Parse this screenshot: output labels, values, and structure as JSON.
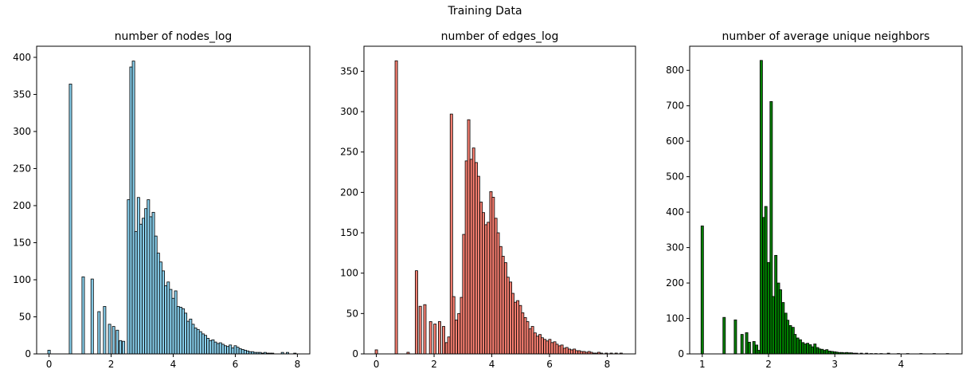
{
  "figure": {
    "suptitle": "Training Data"
  },
  "chart_data": [
    {
      "type": "bar",
      "title": "number of nodes_log",
      "xlabel": "",
      "ylabel": "",
      "color": "#87ceeb",
      "edge_color": "#000000",
      "xlim": [
        -0.4,
        8.4
      ],
      "ylim": [
        0,
        415
      ],
      "xticks": [
        0,
        2,
        4,
        6,
        8
      ],
      "yticks": [
        0,
        50,
        100,
        150,
        200,
        250,
        300,
        350,
        400
      ],
      "grid": false,
      "legend": "none",
      "bin_width": 0.08,
      "bins": [
        {
          "x": 0.0,
          "y": 5
        },
        {
          "x": 0.69,
          "y": 364
        },
        {
          "x": 1.1,
          "y": 104
        },
        {
          "x": 1.39,
          "y": 101
        },
        {
          "x": 1.61,
          "y": 57
        },
        {
          "x": 1.79,
          "y": 64
        },
        {
          "x": 1.95,
          "y": 40
        },
        {
          "x": 2.08,
          "y": 37
        },
        {
          "x": 2.2,
          "y": 32
        },
        {
          "x": 2.3,
          "y": 18
        },
        {
          "x": 2.4,
          "y": 17
        },
        {
          "x": 2.56,
          "y": 208
        },
        {
          "x": 2.64,
          "y": 387
        },
        {
          "x": 2.72,
          "y": 395
        },
        {
          "x": 2.8,
          "y": 165
        },
        {
          "x": 2.88,
          "y": 211
        },
        {
          "x": 2.96,
          "y": 175
        },
        {
          "x": 3.04,
          "y": 183
        },
        {
          "x": 3.12,
          "y": 196
        },
        {
          "x": 3.2,
          "y": 208
        },
        {
          "x": 3.28,
          "y": 185
        },
        {
          "x": 3.36,
          "y": 191
        },
        {
          "x": 3.44,
          "y": 159
        },
        {
          "x": 3.52,
          "y": 136
        },
        {
          "x": 3.6,
          "y": 124
        },
        {
          "x": 3.68,
          "y": 112
        },
        {
          "x": 3.76,
          "y": 92
        },
        {
          "x": 3.84,
          "y": 97
        },
        {
          "x": 3.92,
          "y": 87
        },
        {
          "x": 4.0,
          "y": 75
        },
        {
          "x": 4.08,
          "y": 85
        },
        {
          "x": 4.16,
          "y": 64
        },
        {
          "x": 4.24,
          "y": 63
        },
        {
          "x": 4.32,
          "y": 61
        },
        {
          "x": 4.4,
          "y": 55
        },
        {
          "x": 4.48,
          "y": 44
        },
        {
          "x": 4.56,
          "y": 47
        },
        {
          "x": 4.64,
          "y": 40
        },
        {
          "x": 4.72,
          "y": 35
        },
        {
          "x": 4.8,
          "y": 33
        },
        {
          "x": 4.88,
          "y": 30
        },
        {
          "x": 4.96,
          "y": 27
        },
        {
          "x": 5.04,
          "y": 25
        },
        {
          "x": 5.12,
          "y": 21
        },
        {
          "x": 5.2,
          "y": 18
        },
        {
          "x": 5.28,
          "y": 19
        },
        {
          "x": 5.36,
          "y": 16
        },
        {
          "x": 5.44,
          "y": 14
        },
        {
          "x": 5.52,
          "y": 15
        },
        {
          "x": 5.6,
          "y": 13
        },
        {
          "x": 5.68,
          "y": 11
        },
        {
          "x": 5.76,
          "y": 10
        },
        {
          "x": 5.84,
          "y": 12
        },
        {
          "x": 5.92,
          "y": 8
        },
        {
          "x": 6.0,
          "y": 11
        },
        {
          "x": 6.08,
          "y": 9
        },
        {
          "x": 6.16,
          "y": 7
        },
        {
          "x": 6.24,
          "y": 6
        },
        {
          "x": 6.32,
          "y": 5
        },
        {
          "x": 6.4,
          "y": 4
        },
        {
          "x": 6.48,
          "y": 3
        },
        {
          "x": 6.56,
          "y": 3
        },
        {
          "x": 6.64,
          "y": 2
        },
        {
          "x": 6.72,
          "y": 2
        },
        {
          "x": 6.8,
          "y": 2
        },
        {
          "x": 6.88,
          "y": 1
        },
        {
          "x": 6.96,
          "y": 2
        },
        {
          "x": 7.04,
          "y": 1
        },
        {
          "x": 7.12,
          "y": 1
        },
        {
          "x": 7.2,
          "y": 1
        },
        {
          "x": 7.52,
          "y": 2
        },
        {
          "x": 7.68,
          "y": 2
        },
        {
          "x": 7.92,
          "y": 1
        }
      ]
    },
    {
      "type": "bar",
      "title": "number of edges_log",
      "xlabel": "",
      "ylabel": "",
      "color": "#fa8072",
      "edge_color": "#000000",
      "xlim": [
        -0.43,
        8.98
      ],
      "ylim": [
        0,
        381
      ],
      "xticks": [
        0,
        2,
        4,
        6,
        8
      ],
      "yticks": [
        0,
        50,
        100,
        150,
        200,
        250,
        300,
        350
      ],
      "grid": false,
      "legend": "none",
      "bin_width": 0.085,
      "bins": [
        {
          "x": 0.0,
          "y": 5
        },
        {
          "x": 0.69,
          "y": 363
        },
        {
          "x": 1.1,
          "y": 2
        },
        {
          "x": 1.39,
          "y": 103
        },
        {
          "x": 1.52,
          "y": 59
        },
        {
          "x": 1.68,
          "y": 61
        },
        {
          "x": 1.88,
          "y": 40
        },
        {
          "x": 2.03,
          "y": 37
        },
        {
          "x": 2.19,
          "y": 40
        },
        {
          "x": 2.33,
          "y": 34
        },
        {
          "x": 2.43,
          "y": 14
        },
        {
          "x": 2.51,
          "y": 21
        },
        {
          "x": 2.6,
          "y": 297
        },
        {
          "x": 2.68,
          "y": 71
        },
        {
          "x": 2.77,
          "y": 42
        },
        {
          "x": 2.86,
          "y": 50
        },
        {
          "x": 2.95,
          "y": 70
        },
        {
          "x": 3.03,
          "y": 148
        },
        {
          "x": 3.12,
          "y": 239
        },
        {
          "x": 3.2,
          "y": 290
        },
        {
          "x": 3.29,
          "y": 241
        },
        {
          "x": 3.37,
          "y": 255
        },
        {
          "x": 3.46,
          "y": 237
        },
        {
          "x": 3.54,
          "y": 220
        },
        {
          "x": 3.63,
          "y": 188
        },
        {
          "x": 3.71,
          "y": 175
        },
        {
          "x": 3.8,
          "y": 160
        },
        {
          "x": 3.88,
          "y": 163
        },
        {
          "x": 3.97,
          "y": 201
        },
        {
          "x": 4.05,
          "y": 194
        },
        {
          "x": 4.14,
          "y": 168
        },
        {
          "x": 4.22,
          "y": 150
        },
        {
          "x": 4.31,
          "y": 133
        },
        {
          "x": 4.39,
          "y": 121
        },
        {
          "x": 4.48,
          "y": 113
        },
        {
          "x": 4.56,
          "y": 95
        },
        {
          "x": 4.65,
          "y": 89
        },
        {
          "x": 4.73,
          "y": 75
        },
        {
          "x": 4.82,
          "y": 64
        },
        {
          "x": 4.9,
          "y": 66
        },
        {
          "x": 4.99,
          "y": 60
        },
        {
          "x": 5.07,
          "y": 51
        },
        {
          "x": 5.16,
          "y": 45
        },
        {
          "x": 5.24,
          "y": 40
        },
        {
          "x": 5.33,
          "y": 31
        },
        {
          "x": 5.41,
          "y": 34
        },
        {
          "x": 5.5,
          "y": 26
        },
        {
          "x": 5.58,
          "y": 22
        },
        {
          "x": 5.67,
          "y": 24
        },
        {
          "x": 5.75,
          "y": 20
        },
        {
          "x": 5.84,
          "y": 18
        },
        {
          "x": 5.92,
          "y": 16
        },
        {
          "x": 6.01,
          "y": 18
        },
        {
          "x": 6.09,
          "y": 14
        },
        {
          "x": 6.18,
          "y": 15
        },
        {
          "x": 6.26,
          "y": 12
        },
        {
          "x": 6.35,
          "y": 10
        },
        {
          "x": 6.43,
          "y": 11
        },
        {
          "x": 6.52,
          "y": 7
        },
        {
          "x": 6.6,
          "y": 8
        },
        {
          "x": 6.69,
          "y": 6
        },
        {
          "x": 6.77,
          "y": 5
        },
        {
          "x": 6.86,
          "y": 6
        },
        {
          "x": 6.94,
          "y": 4
        },
        {
          "x": 7.03,
          "y": 4
        },
        {
          "x": 7.11,
          "y": 3
        },
        {
          "x": 7.2,
          "y": 3
        },
        {
          "x": 7.28,
          "y": 2
        },
        {
          "x": 7.37,
          "y": 3
        },
        {
          "x": 7.45,
          "y": 2
        },
        {
          "x": 7.54,
          "y": 1
        },
        {
          "x": 7.62,
          "y": 1
        },
        {
          "x": 7.71,
          "y": 2
        },
        {
          "x": 7.8,
          "y": 1
        },
        {
          "x": 7.97,
          "y": 1
        },
        {
          "x": 8.14,
          "y": 1
        },
        {
          "x": 8.31,
          "y": 1
        },
        {
          "x": 8.48,
          "y": 1
        }
      ]
    },
    {
      "type": "bar",
      "title": "number of average unique neighbors",
      "xlabel": "",
      "ylabel": "",
      "color": "#008000",
      "edge_color": "#000000",
      "xlim": [
        0.81,
        4.92
      ],
      "ylim": [
        0,
        868
      ],
      "xticks": [
        1,
        2,
        3,
        4
      ],
      "yticks": [
        0,
        100,
        200,
        300,
        400,
        500,
        600,
        700,
        800
      ],
      "grid": false,
      "legend": "none",
      "bin_width": 0.037,
      "bins": [
        {
          "x": 1.0,
          "y": 361
        },
        {
          "x": 1.33,
          "y": 103
        },
        {
          "x": 1.5,
          "y": 96
        },
        {
          "x": 1.6,
          "y": 55
        },
        {
          "x": 1.67,
          "y": 60
        },
        {
          "x": 1.71,
          "y": 33
        },
        {
          "x": 1.78,
          "y": 35
        },
        {
          "x": 1.82,
          "y": 25
        },
        {
          "x": 1.85,
          "y": 10
        },
        {
          "x": 1.89,
          "y": 828
        },
        {
          "x": 1.93,
          "y": 385
        },
        {
          "x": 1.96,
          "y": 416
        },
        {
          "x": 2.0,
          "y": 258
        },
        {
          "x": 2.04,
          "y": 712
        },
        {
          "x": 2.07,
          "y": 162
        },
        {
          "x": 2.11,
          "y": 278
        },
        {
          "x": 2.15,
          "y": 200
        },
        {
          "x": 2.18,
          "y": 181
        },
        {
          "x": 2.22,
          "y": 145
        },
        {
          "x": 2.26,
          "y": 115
        },
        {
          "x": 2.29,
          "y": 95
        },
        {
          "x": 2.33,
          "y": 80
        },
        {
          "x": 2.37,
          "y": 75
        },
        {
          "x": 2.4,
          "y": 55
        },
        {
          "x": 2.44,
          "y": 45
        },
        {
          "x": 2.48,
          "y": 40
        },
        {
          "x": 2.52,
          "y": 32
        },
        {
          "x": 2.55,
          "y": 28
        },
        {
          "x": 2.59,
          "y": 30
        },
        {
          "x": 2.63,
          "y": 26
        },
        {
          "x": 2.66,
          "y": 20
        },
        {
          "x": 2.7,
          "y": 28
        },
        {
          "x": 2.74,
          "y": 18
        },
        {
          "x": 2.77,
          "y": 14
        },
        {
          "x": 2.81,
          "y": 13
        },
        {
          "x": 2.85,
          "y": 10
        },
        {
          "x": 2.88,
          "y": 12
        },
        {
          "x": 2.92,
          "y": 8
        },
        {
          "x": 2.96,
          "y": 7
        },
        {
          "x": 3.0,
          "y": 6
        },
        {
          "x": 3.03,
          "y": 5
        },
        {
          "x": 3.07,
          "y": 4
        },
        {
          "x": 3.11,
          "y": 4
        },
        {
          "x": 3.14,
          "y": 3
        },
        {
          "x": 3.18,
          "y": 4
        },
        {
          "x": 3.22,
          "y": 3
        },
        {
          "x": 3.25,
          "y": 3
        },
        {
          "x": 3.29,
          "y": 2
        },
        {
          "x": 3.33,
          "y": 2
        },
        {
          "x": 3.4,
          "y": 2
        },
        {
          "x": 3.48,
          "y": 2
        },
        {
          "x": 3.55,
          "y": 1
        },
        {
          "x": 3.62,
          "y": 1
        },
        {
          "x": 3.7,
          "y": 1
        },
        {
          "x": 3.81,
          "y": 2
        },
        {
          "x": 3.96,
          "y": 1
        },
        {
          "x": 4.1,
          "y": 1
        },
        {
          "x": 4.3,
          "y": 1
        },
        {
          "x": 4.5,
          "y": 1
        },
        {
          "x": 4.7,
          "y": 1
        }
      ]
    }
  ]
}
